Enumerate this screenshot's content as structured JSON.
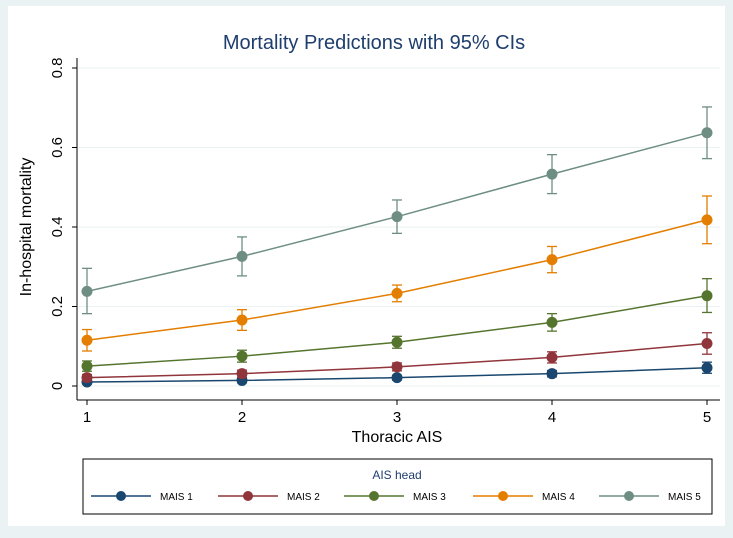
{
  "chart_data": {
    "type": "line",
    "title": "Mortality Predictions with 95% CIs",
    "xlabel": "Thoracic AIS",
    "ylabel": "In-hospital mortality",
    "x": [
      1,
      2,
      3,
      4,
      5
    ],
    "x_tick_labels": [
      "1",
      "2",
      "3",
      "4",
      "5"
    ],
    "y_ticks": [
      0,
      0.2,
      0.4,
      0.6,
      0.8
    ],
    "y_tick_labels": [
      "0",
      "0.2",
      "0.4",
      "0.6",
      "0.8"
    ],
    "xlim": [
      1,
      5
    ],
    "ylim": [
      0,
      0.8
    ],
    "legend_title": "AIS head",
    "legend_position": "bottom",
    "series": [
      {
        "name": "MAIS 1",
        "color": "#1a476f",
        "values": [
          0.01,
          0.014,
          0.021,
          0.031,
          0.046
        ],
        "ci_low": [
          0.005,
          0.008,
          0.015,
          0.023,
          0.032
        ],
        "ci_high": [
          0.015,
          0.02,
          0.027,
          0.039,
          0.06
        ]
      },
      {
        "name": "MAIS 2",
        "color": "#90353b",
        "values": [
          0.021,
          0.031,
          0.048,
          0.072,
          0.107
        ],
        "ci_low": [
          0.013,
          0.022,
          0.038,
          0.058,
          0.08
        ],
        "ci_high": [
          0.029,
          0.04,
          0.058,
          0.086,
          0.134
        ]
      },
      {
        "name": "MAIS 3",
        "color": "#55752f",
        "values": [
          0.05,
          0.075,
          0.11,
          0.16,
          0.227
        ],
        "ci_low": [
          0.037,
          0.06,
          0.095,
          0.138,
          0.185
        ],
        "ci_high": [
          0.063,
          0.09,
          0.125,
          0.182,
          0.27
        ]
      },
      {
        "name": "MAIS 4",
        "color": "#e37e00",
        "values": [
          0.115,
          0.166,
          0.233,
          0.318,
          0.418
        ],
        "ci_low": [
          0.088,
          0.14,
          0.212,
          0.285,
          0.358
        ],
        "ci_high": [
          0.142,
          0.192,
          0.254,
          0.351,
          0.478
        ]
      },
      {
        "name": "MAIS 5",
        "color": "#6e8e84",
        "values": [
          0.238,
          0.326,
          0.426,
          0.533,
          0.637
        ],
        "ci_low": [
          0.182,
          0.277,
          0.384,
          0.484,
          0.572
        ],
        "ci_high": [
          0.296,
          0.375,
          0.468,
          0.582,
          0.702
        ]
      }
    ]
  }
}
